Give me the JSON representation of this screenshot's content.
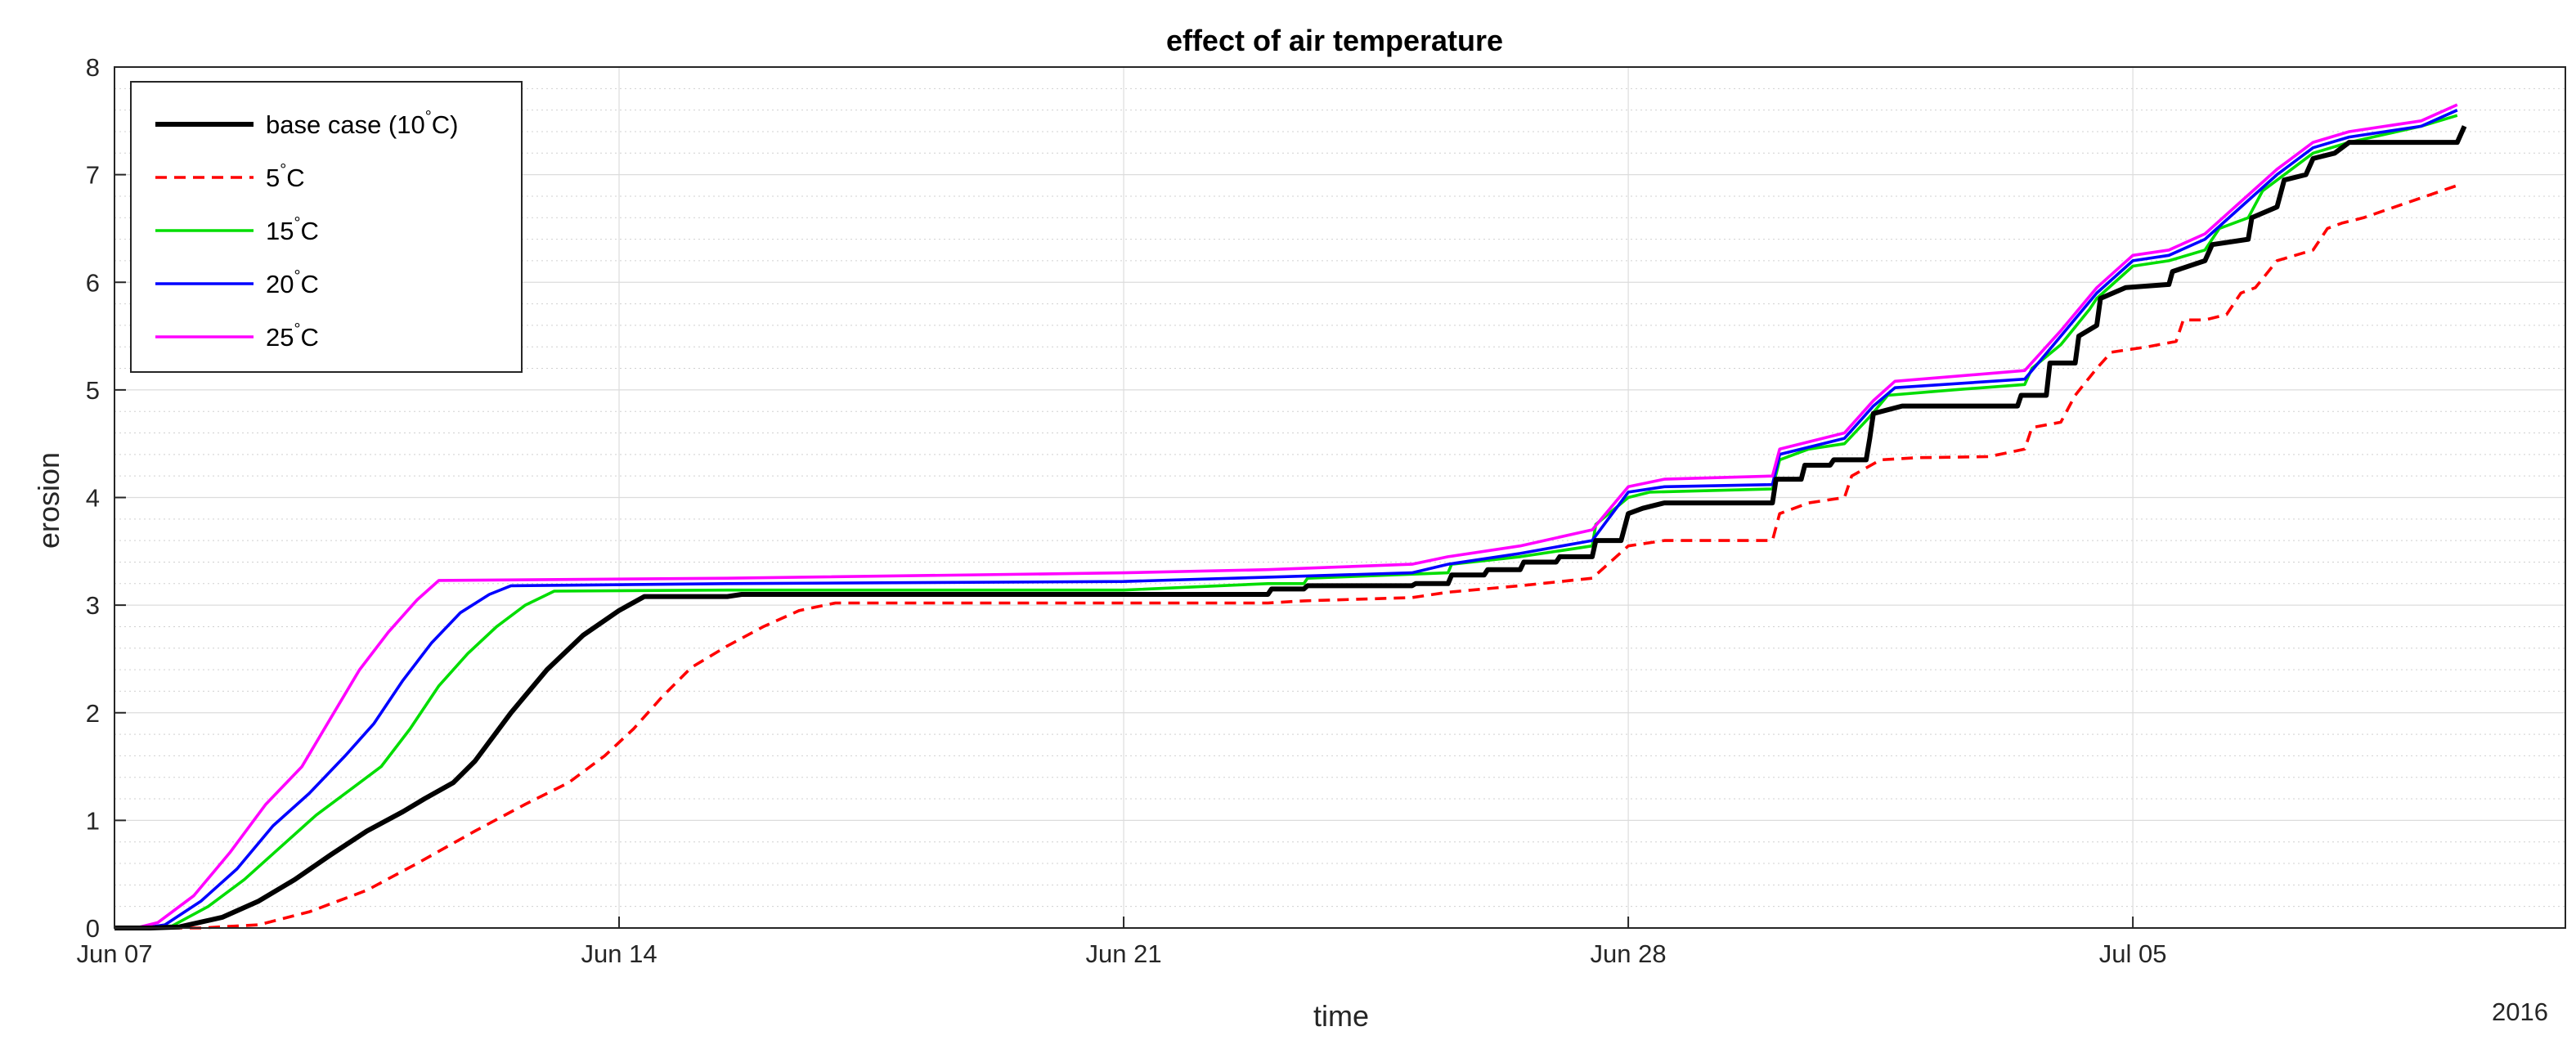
{
  "chart_data": {
    "type": "line",
    "title": "effect of air temperature",
    "xlabel": "time",
    "ylabel": "erosion",
    "year_label": "2016",
    "xlim": [
      0,
      34
    ],
    "ylim": [
      0,
      8
    ],
    "x_ticks": [
      {
        "value": 0,
        "label": "Jun 07"
      },
      {
        "value": 7,
        "label": "Jun 14"
      },
      {
        "value": 14,
        "label": "Jun 21"
      },
      {
        "value": 21,
        "label": "Jun 28"
      },
      {
        "value": 28,
        "label": "Jul 05"
      }
    ],
    "y_ticks": [
      0,
      1,
      2,
      3,
      4,
      5,
      6,
      7,
      8
    ],
    "grid": true,
    "minor_grid": true,
    "legend_position": "top-left",
    "series": [
      {
        "name": "base case (10°C)",
        "legend_main": "base case (10",
        "legend_sup": "°",
        "legend_tail": "C)",
        "color": "#000000",
        "dash": "",
        "width": 3,
        "points": [
          [
            0,
            0
          ],
          [
            0.5,
            0
          ],
          [
            0.9,
            0.01
          ],
          [
            1.5,
            0.1
          ],
          [
            2,
            0.25
          ],
          [
            2.5,
            0.45
          ],
          [
            3,
            0.68
          ],
          [
            3.5,
            0.9
          ],
          [
            4,
            1.08
          ],
          [
            4.3,
            1.2
          ],
          [
            4.7,
            1.35
          ],
          [
            5,
            1.55
          ],
          [
            5.5,
            2.0
          ],
          [
            6,
            2.4
          ],
          [
            6.5,
            2.72
          ],
          [
            7,
            2.95
          ],
          [
            7.35,
            3.08
          ],
          [
            8.5,
            3.08
          ],
          [
            8.7,
            3.1
          ],
          [
            14,
            3.1
          ],
          [
            16,
            3.1
          ],
          [
            16.05,
            3.15
          ],
          [
            16.5,
            3.15
          ],
          [
            16.55,
            3.18
          ],
          [
            18,
            3.18
          ],
          [
            18.05,
            3.2
          ],
          [
            18.5,
            3.2
          ],
          [
            18.55,
            3.28
          ],
          [
            19,
            3.28
          ],
          [
            19.05,
            3.33
          ],
          [
            19.5,
            3.33
          ],
          [
            19.55,
            3.4
          ],
          [
            20,
            3.4
          ],
          [
            20.05,
            3.45
          ],
          [
            20.5,
            3.45
          ],
          [
            20.55,
            3.6
          ],
          [
            20.9,
            3.6
          ],
          [
            21,
            3.85
          ],
          [
            21.2,
            3.9
          ],
          [
            21.5,
            3.95
          ],
          [
            23,
            3.95
          ],
          [
            23.05,
            4.17
          ],
          [
            23.4,
            4.17
          ],
          [
            23.45,
            4.3
          ],
          [
            23.8,
            4.3
          ],
          [
            23.85,
            4.35
          ],
          [
            24.3,
            4.35
          ],
          [
            24.35,
            4.55
          ],
          [
            24.4,
            4.78
          ],
          [
            24.8,
            4.85
          ],
          [
            26.4,
            4.85
          ],
          [
            26.45,
            4.95
          ],
          [
            26.8,
            4.95
          ],
          [
            26.85,
            5.25
          ],
          [
            27.2,
            5.25
          ],
          [
            27.25,
            5.5
          ],
          [
            27.5,
            5.6
          ],
          [
            27.55,
            5.85
          ],
          [
            27.9,
            5.95
          ],
          [
            28.5,
            5.98
          ],
          [
            28.55,
            6.1
          ],
          [
            29,
            6.2
          ],
          [
            29.1,
            6.35
          ],
          [
            29.6,
            6.4
          ],
          [
            29.65,
            6.6
          ],
          [
            30,
            6.7
          ],
          [
            30.1,
            6.95
          ],
          [
            30.4,
            7.0
          ],
          [
            30.5,
            7.15
          ],
          [
            30.8,
            7.2
          ],
          [
            31,
            7.3
          ],
          [
            32.5,
            7.3
          ],
          [
            32.6,
            7.45
          ]
        ]
      },
      {
        "name": "5°C",
        "legend_main": "5",
        "legend_sup": "°",
        "legend_tail": "C",
        "color": "#ff0000",
        "dash": "14,9",
        "width": 1.8,
        "points": [
          [
            0,
            0
          ],
          [
            1.2,
            0
          ],
          [
            2,
            0.03
          ],
          [
            2.7,
            0.15
          ],
          [
            3.5,
            0.35
          ],
          [
            4.2,
            0.6
          ],
          [
            5,
            0.9
          ],
          [
            5.7,
            1.15
          ],
          [
            6.3,
            1.35
          ],
          [
            6.8,
            1.6
          ],
          [
            7.2,
            1.85
          ],
          [
            7.6,
            2.15
          ],
          [
            8,
            2.42
          ],
          [
            8.5,
            2.62
          ],
          [
            9,
            2.8
          ],
          [
            9.5,
            2.95
          ],
          [
            10,
            3.02
          ],
          [
            14,
            3.02
          ],
          [
            16,
            3.02
          ],
          [
            16.5,
            3.04
          ],
          [
            18,
            3.07
          ],
          [
            18.5,
            3.12
          ],
          [
            19.5,
            3.18
          ],
          [
            20.5,
            3.25
          ],
          [
            21,
            3.55
          ],
          [
            21.5,
            3.6
          ],
          [
            23,
            3.6
          ],
          [
            23.1,
            3.85
          ],
          [
            23.5,
            3.95
          ],
          [
            24,
            4.0
          ],
          [
            24.1,
            4.2
          ],
          [
            24.5,
            4.35
          ],
          [
            25,
            4.37
          ],
          [
            26,
            4.38
          ],
          [
            26.5,
            4.45
          ],
          [
            26.6,
            4.65
          ],
          [
            27,
            4.7
          ],
          [
            27.2,
            4.95
          ],
          [
            27.5,
            5.2
          ],
          [
            27.7,
            5.35
          ],
          [
            28.2,
            5.4
          ],
          [
            28.6,
            5.45
          ],
          [
            28.7,
            5.65
          ],
          [
            29,
            5.65
          ],
          [
            29.3,
            5.7
          ],
          [
            29.5,
            5.9
          ],
          [
            29.7,
            5.95
          ],
          [
            30,
            6.2
          ],
          [
            30.5,
            6.3
          ],
          [
            30.7,
            6.5
          ],
          [
            30.9,
            6.55
          ],
          [
            31.2,
            6.6
          ],
          [
            32.5,
            6.9
          ]
        ]
      },
      {
        "name": "15°C",
        "legend_main": "15",
        "legend_sup": "°",
        "legend_tail": "C",
        "color": "#00dd00",
        "dash": "",
        "width": 1.8,
        "points": [
          [
            0,
            0
          ],
          [
            0.4,
            0
          ],
          [
            0.8,
            0.02
          ],
          [
            1.3,
            0.2
          ],
          [
            1.8,
            0.45
          ],
          [
            2.3,
            0.75
          ],
          [
            2.8,
            1.05
          ],
          [
            3.3,
            1.3
          ],
          [
            3.7,
            1.5
          ],
          [
            4.1,
            1.85
          ],
          [
            4.5,
            2.25
          ],
          [
            4.9,
            2.55
          ],
          [
            5.3,
            2.8
          ],
          [
            5.7,
            3.0
          ],
          [
            6.1,
            3.13
          ],
          [
            8.5,
            3.14
          ],
          [
            14,
            3.14
          ],
          [
            16,
            3.2
          ],
          [
            16.5,
            3.2
          ],
          [
            16.55,
            3.25
          ],
          [
            18.5,
            3.3
          ],
          [
            18.55,
            3.38
          ],
          [
            19.5,
            3.45
          ],
          [
            20.5,
            3.55
          ],
          [
            20.55,
            3.75
          ],
          [
            21,
            4.0
          ],
          [
            21.3,
            4.05
          ],
          [
            23,
            4.08
          ],
          [
            23.1,
            4.35
          ],
          [
            23.5,
            4.45
          ],
          [
            24,
            4.5
          ],
          [
            24.35,
            4.75
          ],
          [
            24.6,
            4.95
          ],
          [
            25.5,
            5.0
          ],
          [
            26.5,
            5.05
          ],
          [
            26.6,
            5.2
          ],
          [
            27,
            5.42
          ],
          [
            27.4,
            5.75
          ],
          [
            27.5,
            5.85
          ],
          [
            28,
            6.15
          ],
          [
            28.5,
            6.2
          ],
          [
            29,
            6.3
          ],
          [
            29.2,
            6.5
          ],
          [
            29.6,
            6.6
          ],
          [
            29.8,
            6.85
          ],
          [
            30.5,
            7.2
          ],
          [
            31,
            7.3
          ],
          [
            32,
            7.45
          ],
          [
            32.5,
            7.55
          ]
        ]
      },
      {
        "name": "20°C",
        "legend_main": "20",
        "legend_sup": "°",
        "legend_tail": "C",
        "color": "#0000ff",
        "dash": "",
        "width": 1.8,
        "points": [
          [
            0,
            0
          ],
          [
            0.4,
            0
          ],
          [
            0.7,
            0.03
          ],
          [
            1.2,
            0.25
          ],
          [
            1.7,
            0.55
          ],
          [
            2.2,
            0.95
          ],
          [
            2.7,
            1.25
          ],
          [
            3.2,
            1.6
          ],
          [
            3.6,
            1.9
          ],
          [
            4.0,
            2.3
          ],
          [
            4.4,
            2.65
          ],
          [
            4.8,
            2.93
          ],
          [
            5.2,
            3.1
          ],
          [
            5.5,
            3.18
          ],
          [
            8.5,
            3.2
          ],
          [
            14,
            3.22
          ],
          [
            16,
            3.26
          ],
          [
            18,
            3.3
          ],
          [
            18.5,
            3.38
          ],
          [
            19.5,
            3.48
          ],
          [
            20.5,
            3.6
          ],
          [
            21,
            4.05
          ],
          [
            21.5,
            4.1
          ],
          [
            23,
            4.12
          ],
          [
            23.1,
            4.4
          ],
          [
            24,
            4.55
          ],
          [
            24.4,
            4.85
          ],
          [
            24.7,
            5.02
          ],
          [
            26.5,
            5.1
          ],
          [
            27,
            5.5
          ],
          [
            27.5,
            5.9
          ],
          [
            28,
            6.2
          ],
          [
            28.5,
            6.25
          ],
          [
            29,
            6.4
          ],
          [
            29.5,
            6.7
          ],
          [
            30,
            7.0
          ],
          [
            30.5,
            7.25
          ],
          [
            31,
            7.35
          ],
          [
            32,
            7.45
          ],
          [
            32.5,
            7.6
          ]
        ]
      },
      {
        "name": "25°C",
        "legend_main": "25",
        "legend_sup": "°",
        "legend_tail": "C",
        "color": "#ff00ff",
        "dash": "",
        "width": 1.8,
        "points": [
          [
            0,
            0
          ],
          [
            0.3,
            0
          ],
          [
            0.6,
            0.05
          ],
          [
            1.1,
            0.3
          ],
          [
            1.6,
            0.7
          ],
          [
            2.1,
            1.15
          ],
          [
            2.6,
            1.5
          ],
          [
            3.0,
            1.95
          ],
          [
            3.4,
            2.4
          ],
          [
            3.8,
            2.75
          ],
          [
            4.2,
            3.05
          ],
          [
            4.5,
            3.23
          ],
          [
            8.5,
            3.25
          ],
          [
            14,
            3.3
          ],
          [
            16,
            3.33
          ],
          [
            18,
            3.38
          ],
          [
            18.5,
            3.45
          ],
          [
            19.5,
            3.55
          ],
          [
            20.5,
            3.7
          ],
          [
            21,
            4.1
          ],
          [
            21.5,
            4.17
          ],
          [
            23,
            4.2
          ],
          [
            23.1,
            4.45
          ],
          [
            24,
            4.6
          ],
          [
            24.4,
            4.9
          ],
          [
            24.7,
            5.08
          ],
          [
            26.5,
            5.18
          ],
          [
            27,
            5.55
          ],
          [
            27.5,
            5.95
          ],
          [
            28,
            6.25
          ],
          [
            28.5,
            6.3
          ],
          [
            29,
            6.45
          ],
          [
            29.5,
            6.75
          ],
          [
            30,
            7.05
          ],
          [
            30.5,
            7.3
          ],
          [
            31,
            7.4
          ],
          [
            32,
            7.5
          ],
          [
            32.5,
            7.65
          ]
        ]
      }
    ]
  }
}
